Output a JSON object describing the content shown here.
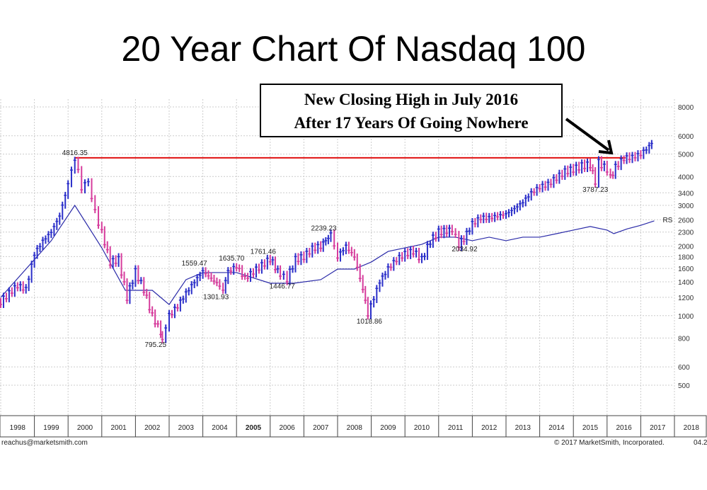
{
  "title": "20 Year Chart Of Nasdaq 100",
  "annotation": {
    "line1": "New Closing High in July 2016",
    "line2": "After 17 Years Of Going Nowhere"
  },
  "footer": {
    "left": "reachus@marketsmith.com",
    "right": "© 2017 MarketSmith, Incorporated.",
    "corner": "04.2"
  },
  "colors": {
    "up": "#2b2fc9",
    "down": "#d63c9c",
    "rs": "#2a2aa8",
    "resistance": "#e01010"
  },
  "chart_data": {
    "type": "line",
    "title": "20 Year Chart Of Nasdaq 100",
    "yscale": "log",
    "ylim": [
      430,
      9000
    ],
    "xlim": [
      1998,
      2019
    ],
    "y_ticks": [
      8000,
      6000,
      5000,
      4000,
      3400,
      3000,
      2600,
      2300,
      2000,
      1800,
      1600,
      1400,
      1200,
      1000,
      800,
      600,
      500
    ],
    "x_ticks": [
      "1998",
      "1999",
      "2000",
      "2001",
      "2002",
      "2003",
      "2004",
      "2005",
      "2006",
      "2007",
      "2008",
      "2009",
      "2010",
      "2011",
      "2012",
      "2013",
      "2014",
      "2015",
      "2016",
      "2017",
      "2018"
    ],
    "grid": true,
    "resistance_level": 4816.35,
    "series": [
      {
        "name": "Nasdaq 100",
        "x": [
          1998.0,
          1998.25,
          1998.5,
          1998.75,
          1999.0,
          1999.25,
          1999.5,
          1999.75,
          2000.0,
          2000.2,
          2000.4,
          2000.6,
          2000.8,
          2001.0,
          2001.25,
          2001.5,
          2001.75,
          2002.0,
          2002.25,
          2002.5,
          2002.75,
          2002.8,
          2003.0,
          2003.25,
          2003.5,
          2003.75,
          2004.0,
          2004.25,
          2004.5,
          2004.6,
          2004.75,
          2005.0,
          2005.25,
          2005.5,
          2005.75,
          2006.0,
          2006.3,
          2006.5,
          2006.75,
          2007.0,
          2007.25,
          2007.5,
          2007.8,
          2008.0,
          2008.25,
          2008.5,
          2008.75,
          2008.9,
          2009.25,
          2009.5,
          2009.75,
          2010.0,
          2010.25,
          2010.5,
          2010.75,
          2011.0,
          2011.4,
          2011.6,
          2011.75,
          2012.0,
          2012.25,
          2012.5,
          2012.75,
          2013.0,
          2013.25,
          2013.5,
          2013.75,
          2014.0,
          2014.25,
          2014.5,
          2014.75,
          2015.0,
          2015.25,
          2015.5,
          2015.65,
          2015.75,
          2016.0,
          2016.1,
          2016.25,
          2016.5,
          2016.75,
          2017.0,
          2017.25,
          2017.4
        ],
        "values": [
          1150,
          1250,
          1350,
          1300,
          1850,
          2100,
          2300,
          2700,
          3700,
          4816,
          3600,
          3800,
          2800,
          2300,
          1700,
          1750,
          1200,
          1550,
          1300,
          1000,
          850,
          795,
          1000,
          1100,
          1250,
          1400,
          1559,
          1450,
          1350,
          1302,
          1550,
          1636,
          1450,
          1550,
          1650,
          1761,
          1500,
          1447,
          1750,
          1800,
          1950,
          2000,
          2239,
          1800,
          2000,
          1800,
          1300,
          1019,
          1400,
          1600,
          1750,
          1850,
          1900,
          1750,
          2100,
          2300,
          2350,
          2035,
          2150,
          2500,
          2650,
          2650,
          2700,
          2750,
          2900,
          3100,
          3400,
          3600,
          3700,
          3950,
          4200,
          4300,
          4450,
          4500,
          3787,
          4600,
          4300,
          3950,
          4400,
          4800,
          4850,
          5000,
          5400,
          5700
        ]
      },
      {
        "name": "RS",
        "x": [
          1998.0,
          1999.5,
          2000.2,
          2001.0,
          2001.7,
          2002.5,
          2003.0,
          2003.5,
          2004.0,
          2005.0,
          2006.0,
          2006.7,
          2007.5,
          2008.0,
          2008.5,
          2009.0,
          2009.5,
          2010.5,
          2011.0,
          2011.5,
          2012.0,
          2012.5,
          2013.0,
          2013.5,
          2014.0,
          2014.5,
          2015.0,
          2015.5,
          2016.0,
          2016.2,
          2016.6,
          2017.0,
          2017.4
        ],
        "values": [
          1199,
          2110,
          3000,
          1965,
          1287,
          1287,
          1117,
          1431,
          1536,
          1536,
          1381,
          1381,
          1431,
          1590,
          1590,
          1706,
          1896,
          2035,
          2185,
          2185,
          2110,
          2185,
          2110,
          2185,
          2185,
          2263,
          2345,
          2430,
          2345,
          2263,
          2375,
          2460,
          2570
        ]
      }
    ],
    "annotations": [
      {
        "label": "4816.35",
        "x": 2000.2,
        "y": 4816.35
      },
      {
        "label": "795.25",
        "x": 2002.8,
        "y": 795.25
      },
      {
        "label": "1559.47",
        "x": 2004.0,
        "y": 1559.47
      },
      {
        "label": "1301.93",
        "x": 2004.6,
        "y": 1301.93
      },
      {
        "label": "1635.70",
        "x": 2005.0,
        "y": 1635.7
      },
      {
        "label": "1761.46",
        "x": 2006.0,
        "y": 1761.46
      },
      {
        "label": "1446.77",
        "x": 2006.5,
        "y": 1446.77
      },
      {
        "label": "2239.23",
        "x": 2007.8,
        "y": 2239.23
      },
      {
        "label": "1018.86",
        "x": 2008.9,
        "y": 1018.86
      },
      {
        "label": "2034.92",
        "x": 2011.6,
        "y": 2034.92
      },
      {
        "label": "3787.23",
        "x": 2015.65,
        "y": 3787.23
      },
      {
        "label": "RS",
        "x": 2017.4,
        "y": 2570
      }
    ]
  }
}
